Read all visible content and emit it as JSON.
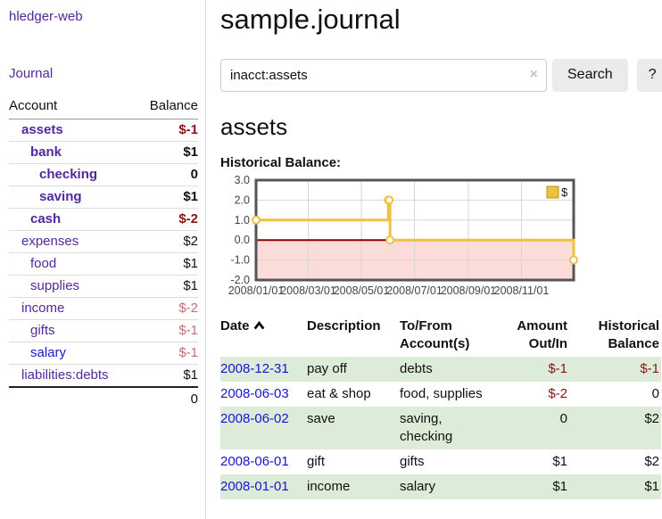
{
  "app": {
    "brand": "hledger-web",
    "nav_journal": "Journal"
  },
  "sidebar": {
    "table_headers": {
      "account": "Account",
      "balance": "Balance"
    },
    "accounts": [
      {
        "name": "assets",
        "balance": "$-1",
        "indent": 1,
        "bold": true,
        "negative": "strong"
      },
      {
        "name": "bank",
        "balance": "$1",
        "indent": 2,
        "bold": true,
        "negative": null
      },
      {
        "name": "checking",
        "balance": "0",
        "indent": 3,
        "bold": true,
        "negative": null
      },
      {
        "name": "saving",
        "balance": "$1",
        "indent": 3,
        "bold": true,
        "negative": null
      },
      {
        "name": "cash",
        "balance": "$-2",
        "indent": 2,
        "bold": true,
        "negative": "strong"
      },
      {
        "name": "expenses",
        "balance": "$2",
        "indent": 1,
        "bold": false,
        "negative": null
      },
      {
        "name": "food",
        "balance": "$1",
        "indent": 2,
        "bold": false,
        "negative": null
      },
      {
        "name": "supplies",
        "balance": "$1",
        "indent": 2,
        "bold": false,
        "negative": null
      },
      {
        "name": "income",
        "balance": "$-2",
        "indent": 1,
        "bold": false,
        "negative": "soft"
      },
      {
        "name": "gifts",
        "balance": "$-1",
        "indent": 2,
        "bold": false,
        "negative": "soft"
      },
      {
        "name": "salary",
        "balance": "$-1",
        "indent": 2,
        "bold": false,
        "negative": "soft",
        "link_color": "blue"
      },
      {
        "name": "liabilities:debts",
        "balance": "$1",
        "indent": 1,
        "bold": false,
        "negative": null
      }
    ],
    "total": "0"
  },
  "header": {
    "title": "sample.journal"
  },
  "search": {
    "value": "inacct:assets",
    "clear_icon": "×",
    "button_label": "Search",
    "help_label": "?"
  },
  "account_page": {
    "heading": "assets",
    "chart_label": "Historical Balance:"
  },
  "chart_data": {
    "type": "line",
    "title": "Historical Balance",
    "step": true,
    "series": [
      {
        "name": "$",
        "color": "#edc240",
        "points": [
          [
            "2008-01-01",
            1
          ],
          [
            "2008-06-01",
            2
          ],
          [
            "2008-06-02",
            2
          ],
          [
            "2008-06-03",
            0
          ],
          [
            "2008-12-31",
            -1
          ]
        ]
      }
    ],
    "x_ticks": [
      "2008/01/01",
      "2008/03/01",
      "2008/05/01",
      "2008/07/01",
      "2008/09/01",
      "2008/11/01"
    ],
    "y_ticks": [
      "3.0",
      "2.0",
      "1.0",
      "0.0",
      "-1.0",
      "-2.0"
    ],
    "ylim": [
      -2,
      3
    ],
    "x_start": "2008-01-01",
    "x_end": "2008-12-31",
    "legend": {
      "label": "$",
      "position": "top-right"
    },
    "colors": {
      "marker_fill": "#ffffff",
      "negative_region_fill": "#fcdcd9",
      "zero_line": "#8b0000",
      "grid": "#d6d6d6",
      "border": "#555555",
      "tick_text": "#444444",
      "legend_swatch_border": "#b8941f"
    }
  },
  "register": {
    "headers": {
      "date": "Date",
      "description": "Description",
      "accounts": "To/From Account(s)",
      "amount": "Amount Out/In",
      "balance": "Historical Balance"
    },
    "rows": [
      {
        "date": "2008-12-31",
        "description": "pay off",
        "accounts": "debts",
        "amount": "$-1",
        "balance": "$-1",
        "shaded": true
      },
      {
        "date": "2008-06-03",
        "description": "eat & shop",
        "accounts": "food, supplies",
        "amount": "$-2",
        "balance": "0",
        "shaded": false
      },
      {
        "date": "2008-06-02",
        "description": "save",
        "accounts": "saving, checking",
        "amount": "0",
        "balance": "$2",
        "shaded": true
      },
      {
        "date": "2008-06-01",
        "description": "gift",
        "accounts": "gifts",
        "amount": "$1",
        "balance": "$2",
        "shaded": false
      },
      {
        "date": "2008-01-01",
        "description": "income",
        "accounts": "salary",
        "amount": "$1",
        "balance": "$1",
        "shaded": true
      }
    ]
  },
  "colors": {
    "link_purple": "#53279d",
    "link_blue": "#1515d0",
    "negative_strong": "#8b1414",
    "negative_soft": "#bf7272",
    "row_stripe_green": "#ddecd9",
    "button_gray": "#ebebeb"
  }
}
